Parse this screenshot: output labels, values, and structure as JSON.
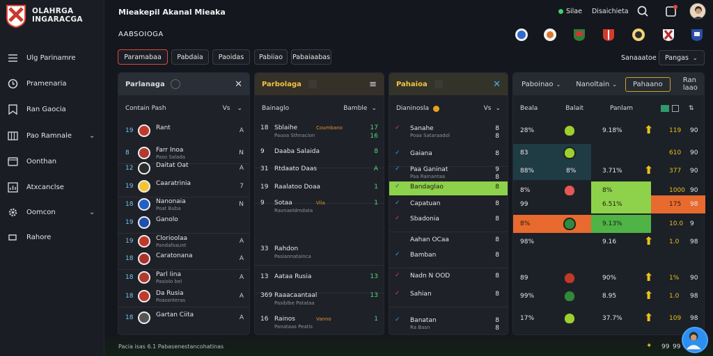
{
  "app": {
    "brand_line1": "OLAHRGA",
    "brand_line2": "INGARACGA",
    "title": "Mieakepil Akanal Mieaka",
    "subtitle": "AABSOIOGA",
    "status_text": "Silae",
    "status_label": "Disaichieta"
  },
  "sidebar": {
    "items": [
      {
        "label": "Ulg Parinamre",
        "icon": "list-icon"
      },
      {
        "label": "Pramenaria",
        "icon": "clock-icon"
      },
      {
        "label": "Ran Gaocia",
        "icon": "bookmark-icon",
        "chevron": ""
      },
      {
        "label": "Pao Ramnale",
        "icon": "columns-icon",
        "chevron": "⌄"
      },
      {
        "label": "Oonthan",
        "icon": "window-icon"
      },
      {
        "label": "Atxcanclse",
        "icon": "chart-icon"
      },
      {
        "label": "Oomcon",
        "icon": "gear-icon",
        "chevron": "⌄"
      },
      {
        "label": "Rahore",
        "icon": "logout-icon"
      }
    ]
  },
  "filters": [
    "Paramabaa",
    "Pabdaia",
    "Paoidas",
    "Pabiiao",
    "Pabaiaabas"
  ],
  "sort": {
    "label": "Sanaaatoe",
    "value": "Pangas"
  },
  "colors": {
    "accent_red": "#d94a3f",
    "green": "#8ed14a",
    "orange": "#e86a2e",
    "yellow": "#e9c21c",
    "blue": "#3f9be6"
  },
  "panel1": {
    "title": "Parlanaga",
    "sub_left": "Contain Pash",
    "sub_right": "Vs",
    "rows": [
      {
        "num": "19",
        "name": "Rant",
        "right": "A"
      },
      {
        "num": "8",
        "name": "Farr Inoa",
        "sub": "Paso Salada",
        "right": "N"
      },
      {
        "num": "12",
        "name": "Daitat Oat",
        "right": "A"
      },
      {
        "num": "19",
        "name": "Caaratrinia",
        "right": "7"
      },
      {
        "num": "18",
        "name": "Nanonaia",
        "sub": "Poat Buba",
        "right": "N"
      },
      {
        "num": "19",
        "name": "Ganolo",
        "right": ""
      },
      {
        "num": "19",
        "name": "Clorioolaa",
        "sub": "Pandafsaunt",
        "right": "A"
      },
      {
        "num": "18",
        "name": "Caratonana",
        "right": "A"
      },
      {
        "num": "18",
        "name": "Parl Iina",
        "sub": "Pasiolo bel",
        "right": "A"
      },
      {
        "num": "18",
        "name": "Da Rusia",
        "sub": "Poassnteras",
        "right": "A"
      },
      {
        "num": "18",
        "name": "Gartan Ciita",
        "right": "A"
      }
    ]
  },
  "panel2": {
    "title": "Parbolaga",
    "sub_left": "Bainaglo",
    "sub_right": "Bamble",
    "rows": [
      {
        "lead": "18",
        "name": "Sblaihe",
        "tag": "Coumbano",
        "sub": "Pauoa Sthnacion",
        "right": "17",
        "right2": "16"
      },
      {
        "lead": "9",
        "name": "Daaba Salaida",
        "right": "8"
      },
      {
        "lead": "31",
        "name": "Rtdaato Daas",
        "right": "A"
      },
      {
        "lead": "19",
        "name": "Raalatoo Doaa",
        "right": "1"
      },
      {
        "lead": "9",
        "name": "Sotaa",
        "tag": "Vila",
        "sub": "Ravnaeldmdata",
        "right": "1"
      },
      {
        "lead": "33",
        "name": "Rahdon",
        "sub": "Pasiannatainca",
        "right": ""
      },
      {
        "lead": "13",
        "name": "Aataa Rusia",
        "right": "13"
      },
      {
        "lead": "369",
        "name": "Raaacaantaal",
        "sub": "Pasiblbe Patataa",
        "right": "13"
      },
      {
        "lead": "16",
        "name": "Rainos",
        "tag": "Vanno",
        "sub": "Panataas Peatis",
        "right": "1"
      }
    ]
  },
  "panel3": {
    "title": "Pahaioa",
    "sub_left": "Dianinosla",
    "sub_right": "Vs",
    "rows": [
      {
        "mark": "x",
        "name": "Sanahe",
        "sub": "Poaa Sataraadol",
        "right": "8",
        "right2": "8"
      },
      {
        "mark": "check",
        "name": "Gaiana",
        "right": "8"
      },
      {
        "mark": "check",
        "name": "Paa Ganinat",
        "sub": "Paa Rainantaa",
        "right": "9",
        "right2": "8"
      },
      {
        "mark": "check",
        "name": "Bandaglao",
        "right": "8",
        "highlight": true
      },
      {
        "mark": "check",
        "name": "Capatuan",
        "right": "8"
      },
      {
        "mark": "x",
        "name": "Sbadonia",
        "right": "8"
      },
      {
        "mark": "",
        "name": "Aahan OCaa",
        "right": "8"
      },
      {
        "mark": "check",
        "name": "Bamban",
        "right": "8"
      },
      {
        "mark": "x",
        "name": "Nadn N OOD",
        "right": "8"
      },
      {
        "mark": "x",
        "name": "Sahian",
        "right": "8"
      },
      {
        "mark": "check",
        "name": "Banatan",
        "sub": "Ra Basn",
        "right": "8",
        "right2": "8"
      }
    ]
  },
  "panel4": {
    "tabs": [
      "Paboinao",
      "Nanoltain",
      "Pahaano",
      "Ran laao"
    ],
    "col_labels": [
      "Beala",
      "Balait",
      "Panlam"
    ],
    "rows": [
      {
        "a": "28%",
        "pct": "9.18%",
        "val": "119",
        "last": "90"
      },
      {
        "a": "83",
        "b": "9%",
        "pct": "",
        "val": "610",
        "last": "90"
      },
      {
        "a": "88%",
        "b": "8%",
        "pct": "3.71%",
        "val": "377",
        "last": "90"
      },
      {
        "a": "8%",
        "b": "",
        "pct": "8%",
        "val": "1000",
        "last": "90"
      },
      {
        "a": "99",
        "b": "",
        "pct": "6.51%",
        "val": "175",
        "last": "98"
      },
      {
        "a": "8%",
        "b": "8%",
        "pct": "9.13%",
        "val": "10.0",
        "last": "9"
      },
      {
        "a": "98%",
        "pct": "9.16",
        "val": "1.0",
        "last": "98"
      },
      {
        "a": "89",
        "pct": "90%",
        "val": "1%",
        "last": "90"
      },
      {
        "a": "99%",
        "pct": "8.95",
        "val": "1.0",
        "last": "98"
      },
      {
        "a": "17%",
        "pct": "37.7%",
        "val": "109",
        "last": "98"
      }
    ]
  },
  "footer": {
    "text": "Pacia isas 6.1 Pabasenestancohatinas",
    "right1": "99",
    "right2": "99"
  }
}
